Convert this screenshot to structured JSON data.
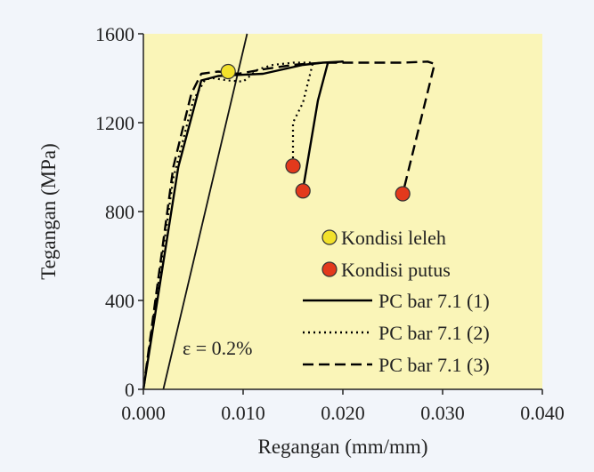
{
  "chart_data": {
    "type": "line",
    "title": "",
    "xlabel": "Regangan (mm/mm)",
    "ylabel": "Tegangan (MPa)",
    "xlim": [
      0,
      0.04
    ],
    "ylim": [
      0,
      1600
    ],
    "x_ticks": [
      "0.000",
      "0.010",
      "0.020",
      "0.030",
      "0.040"
    ],
    "y_ticks": [
      "0",
      "400",
      "800",
      "1200",
      "1600"
    ],
    "background": "#faf5b8",
    "grid": false,
    "legend_position": "bottom-right",
    "annotation": "ε = 0.2%",
    "offset_line": [
      [
        0.002,
        0
      ],
      [
        0.0104,
        1600
      ]
    ],
    "series": [
      {
        "name": "PC bar 7.1 (1)",
        "style": "solid",
        "color": "#000000",
        "points": [
          [
            0,
            0
          ],
          [
            0.0035,
            1000
          ],
          [
            0.0058,
            1390
          ],
          [
            0.0075,
            1410
          ],
          [
            0.0095,
            1415
          ],
          [
            0.012,
            1420
          ],
          [
            0.014,
            1440
          ],
          [
            0.016,
            1460
          ],
          [
            0.018,
            1470
          ],
          [
            0.02,
            1475
          ],
          [
            0.0185,
            1470
          ],
          [
            0.0175,
            1300
          ],
          [
            0.016,
            900
          ]
        ]
      },
      {
        "name": "PC bar 7.1 (2)",
        "style": "dotted",
        "color": "#000000",
        "points": [
          [
            0,
            0
          ],
          [
            0.003,
            950
          ],
          [
            0.005,
            1300
          ],
          [
            0.0062,
            1395
          ],
          [
            0.007,
            1400
          ],
          [
            0.0085,
            1390
          ],
          [
            0.01,
            1385
          ],
          [
            0.0115,
            1440
          ],
          [
            0.013,
            1460
          ],
          [
            0.015,
            1470
          ],
          [
            0.017,
            1470
          ],
          [
            0.016,
            1290
          ],
          [
            0.015,
            1200
          ],
          [
            0.015,
            1000
          ]
        ]
      },
      {
        "name": "PC bar 7.1 (3)",
        "style": "dashed",
        "color": "#000000",
        "points": [
          [
            0,
            0
          ],
          [
            0.003,
            1000
          ],
          [
            0.0048,
            1330
          ],
          [
            0.0058,
            1420
          ],
          [
            0.0075,
            1430
          ],
          [
            0.0095,
            1420
          ],
          [
            0.012,
            1440
          ],
          [
            0.015,
            1460
          ],
          [
            0.018,
            1470
          ],
          [
            0.022,
            1470
          ],
          [
            0.026,
            1470
          ],
          [
            0.0285,
            1475
          ],
          [
            0.0292,
            1465
          ],
          [
            0.026,
            880
          ]
        ]
      }
    ],
    "markers": [
      {
        "name": "Kondisi leleh",
        "color": "#f2e12b",
        "points": [
          [
            0.0085,
            1430
          ]
        ]
      },
      {
        "name": "Kondisi putus",
        "color": "#e3391c",
        "points": [
          [
            0.015,
            1005
          ],
          [
            0.016,
            893
          ],
          [
            0.026,
            880
          ]
        ]
      }
    ]
  }
}
